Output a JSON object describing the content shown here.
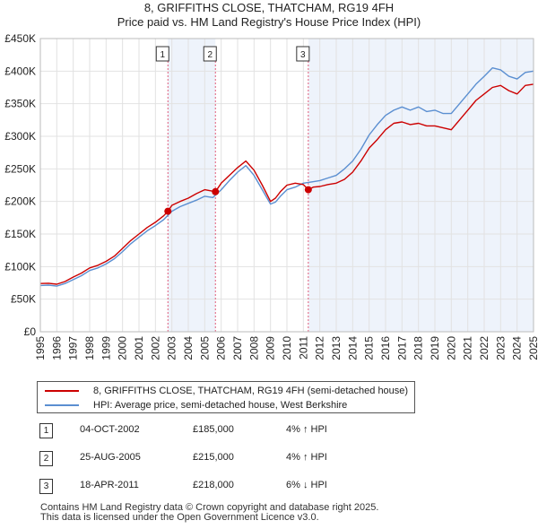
{
  "chart_data": {
    "type": "line",
    "title": "8, GRIFFITHS CLOSE, THATCHAM, RG19 4FH",
    "subtitle": "Price paid vs. HM Land Registry's House Price Index (HPI)",
    "xlim": [
      1995,
      2025
    ],
    "ylim": [
      0,
      450000
    ],
    "x_ticks": [
      "1995",
      "1996",
      "1997",
      "1998",
      "1999",
      "2000",
      "2001",
      "2002",
      "2003",
      "2004",
      "2005",
      "2006",
      "2007",
      "2008",
      "2009",
      "2010",
      "2011",
      "2012",
      "2013",
      "2014",
      "2015",
      "2016",
      "2017",
      "2018",
      "2019",
      "2020",
      "2021",
      "2022",
      "2023",
      "2024",
      "2025"
    ],
    "y_ticks": [
      {
        "value": 0,
        "label": "£0"
      },
      {
        "value": 50000,
        "label": "£50K"
      },
      {
        "value": 100000,
        "label": "£100K"
      },
      {
        "value": 150000,
        "label": "£150K"
      },
      {
        "value": 200000,
        "label": "£200K"
      },
      {
        "value": 250000,
        "label": "£250K"
      },
      {
        "value": 300000,
        "label": "£300K"
      },
      {
        "value": 350000,
        "label": "£350K"
      },
      {
        "value": 400000,
        "label": "£400K"
      },
      {
        "value": 450000,
        "label": "£450K"
      }
    ],
    "grid": true,
    "shaded_periods": [
      [
        2002.76,
        2005.65
      ],
      [
        2011.3,
        2025
      ]
    ],
    "series": [
      {
        "name": "8, GRIFFITHS CLOSE, THATCHAM, RG19 4FH (semi-detached house)",
        "color": "#cc0000",
        "x": [
          1995.0,
          1995.5,
          1996.0,
          1996.5,
          1997.0,
          1997.5,
          1998.0,
          1998.5,
          1999.0,
          1999.5,
          2000.0,
          2000.5,
          2001.0,
          2001.5,
          2002.0,
          2002.5,
          2002.76,
          2003.0,
          2003.5,
          2004.0,
          2004.5,
          2005.0,
          2005.65,
          2006.0,
          2006.5,
          2007.0,
          2007.5,
          2008.0,
          2008.5,
          2009.0,
          2009.3,
          2009.6,
          2010.0,
          2010.5,
          2011.0,
          2011.3,
          2011.6,
          2012.0,
          2012.5,
          2013.0,
          2013.5,
          2014.0,
          2014.5,
          2015.0,
          2015.5,
          2016.0,
          2016.5,
          2017.0,
          2017.5,
          2018.0,
          2018.5,
          2019.0,
          2019.5,
          2020.0,
          2020.5,
          2021.0,
          2021.5,
          2022.0,
          2022.5,
          2023.0,
          2023.5,
          2024.0,
          2024.5,
          2025.0
        ],
        "y": [
          74000,
          74500,
          73000,
          77000,
          84000,
          90000,
          98000,
          102000,
          108000,
          116000,
          128000,
          140000,
          150000,
          160000,
          168000,
          178000,
          185000,
          194000,
          200000,
          205000,
          212000,
          218000,
          215000,
          228000,
          240000,
          252000,
          262000,
          248000,
          225000,
          200000,
          205000,
          215000,
          225000,
          228000,
          226000,
          218000,
          222000,
          223000,
          226000,
          228000,
          234000,
          245000,
          262000,
          282000,
          295000,
          310000,
          320000,
          322000,
          318000,
          320000,
          316000,
          316000,
          313000,
          310000,
          325000,
          340000,
          355000,
          365000,
          375000,
          378000,
          370000,
          365000,
          378000,
          380000
        ]
      },
      {
        "name": "HPI: Average price, semi-detached house, West Berkshire",
        "color": "#5b8fd1",
        "x": [
          1995.0,
          1995.5,
          1996.0,
          1996.5,
          1997.0,
          1997.5,
          1998.0,
          1998.5,
          1999.0,
          1999.5,
          2000.0,
          2000.5,
          2001.0,
          2001.5,
          2002.0,
          2002.5,
          2003.0,
          2003.5,
          2004.0,
          2004.5,
          2005.0,
          2005.5,
          2006.0,
          2006.5,
          2007.0,
          2007.5,
          2008.0,
          2008.5,
          2009.0,
          2009.3,
          2009.6,
          2010.0,
          2010.5,
          2011.0,
          2011.5,
          2012.0,
          2012.5,
          2013.0,
          2013.5,
          2014.0,
          2014.5,
          2015.0,
          2015.5,
          2016.0,
          2016.5,
          2017.0,
          2017.5,
          2018.0,
          2018.5,
          2019.0,
          2019.5,
          2020.0,
          2020.5,
          2021.0,
          2021.5,
          2022.0,
          2022.5,
          2023.0,
          2023.5,
          2024.0,
          2024.5,
          2025.0
        ],
        "y": [
          71000,
          71500,
          70000,
          74000,
          80000,
          86000,
          94000,
          98000,
          104000,
          112000,
          123000,
          135000,
          145000,
          155000,
          163000,
          172000,
          185000,
          192000,
          197000,
          202000,
          208000,
          206000,
          218000,
          232000,
          245000,
          255000,
          240000,
          218000,
          196000,
          199000,
          208000,
          218000,
          222000,
          228000,
          230000,
          232000,
          236000,
          240000,
          250000,
          262000,
          280000,
          302000,
          318000,
          332000,
          340000,
          345000,
          340000,
          345000,
          338000,
          340000,
          335000,
          335000,
          350000,
          365000,
          380000,
          392000,
          405000,
          402000,
          392000,
          388000,
          398000,
          400000
        ]
      }
    ],
    "sales": [
      {
        "marker": "1",
        "x": 2002.76,
        "price": 185000
      },
      {
        "marker": "2",
        "x": 2005.65,
        "price": 215000
      },
      {
        "marker": "3",
        "x": 2011.3,
        "price": 218000
      }
    ]
  },
  "legend": {
    "property_label": "8, GRIFFITHS CLOSE, THATCHAM, RG19 4FH (semi-detached house)",
    "hpi_label": "HPI: Average price, semi-detached house, West Berkshire"
  },
  "sales_table": [
    {
      "marker": "1",
      "date": "04-OCT-2002",
      "price": "£185,000",
      "hpi": "4% ↑ HPI"
    },
    {
      "marker": "2",
      "date": "25-AUG-2005",
      "price": "£215,000",
      "hpi": "4% ↑ HPI"
    },
    {
      "marker": "3",
      "date": "18-APR-2011",
      "price": "£218,000",
      "hpi": "6% ↓ HPI"
    }
  ],
  "footer": {
    "line1": "Contains HM Land Registry data © Crown copyright and database right 2025.",
    "line2": "This data is licensed under the Open Government Licence v3.0."
  }
}
